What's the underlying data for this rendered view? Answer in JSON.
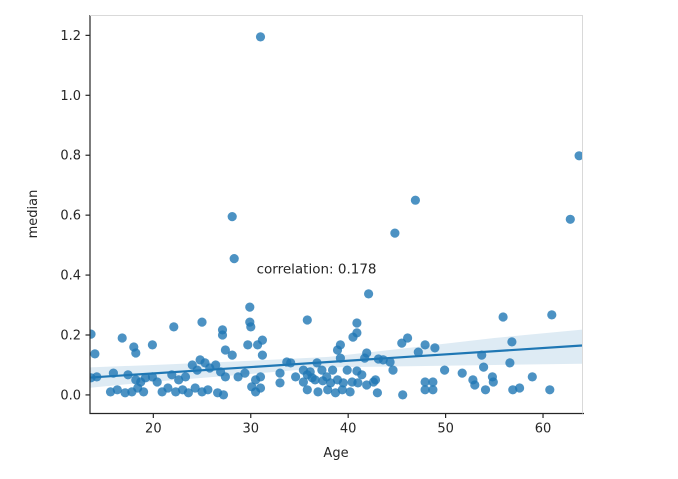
{
  "chart_data": {
    "type": "scatter",
    "title": "",
    "xlabel": "Age",
    "ylabel": "median",
    "xlim": [
      13.5,
      64.0
    ],
    "ylim": [
      -0.062,
      1.268
    ],
    "x_ticks": [
      20,
      30,
      40,
      50,
      60
    ],
    "x_tick_labels": [
      "20",
      "30",
      "40",
      "50",
      "60"
    ],
    "y_ticks": [
      0.0,
      0.2,
      0.4,
      0.6,
      0.8,
      1.0,
      1.2
    ],
    "y_tick_labels": [
      "0.0",
      "0.2",
      "0.4",
      "0.6",
      "0.8",
      "1.0",
      "1.2"
    ],
    "grid": false,
    "legend": null,
    "annotation": {
      "text": "correlation: 0.178",
      "x": 30.6,
      "y": 0.405
    },
    "colors": {
      "marker": "#1f77b4",
      "marker_opacity": 0.8,
      "regression_line": "#1f77b4",
      "confidence_band": "#1f77b4",
      "band_opacity": 0.15,
      "axis_dark": "#262626",
      "axis_light": "#d9d9d9",
      "background": "#ffffff"
    },
    "marker_radius": 4.6,
    "regression_line_data": {
      "x": [
        13.5,
        64.0
      ],
      "y": [
        0.058,
        0.165
      ]
    },
    "confidence_band_data": {
      "x": [
        13.5,
        20,
        30,
        38,
        47,
        55,
        64
      ],
      "upper": [
        0.092,
        0.1,
        0.114,
        0.127,
        0.16,
        0.19,
        0.218
      ],
      "lower": [
        0.024,
        0.044,
        0.07,
        0.092,
        0.096,
        0.1,
        0.104
      ]
    },
    "points": [
      [
        13.6,
        0.203
      ],
      [
        13.6,
        0.057
      ],
      [
        14.0,
        0.137
      ],
      [
        14.2,
        0.06
      ],
      [
        15.6,
        0.01
      ],
      [
        15.9,
        0.073
      ],
      [
        16.3,
        0.017
      ],
      [
        16.8,
        0.19
      ],
      [
        17.1,
        0.007
      ],
      [
        17.4,
        0.067
      ],
      [
        17.8,
        0.01
      ],
      [
        18.0,
        0.16
      ],
      [
        18.2,
        0.14
      ],
      [
        18.2,
        0.05
      ],
      [
        18.4,
        0.023
      ],
      [
        18.7,
        0.043
      ],
      [
        19.0,
        0.01
      ],
      [
        19.2,
        0.057
      ],
      [
        19.9,
        0.167
      ],
      [
        19.9,
        0.06
      ],
      [
        20.4,
        0.043
      ],
      [
        20.9,
        0.01
      ],
      [
        21.5,
        0.023
      ],
      [
        21.9,
        0.067
      ],
      [
        22.1,
        0.227
      ],
      [
        22.3,
        0.01
      ],
      [
        22.6,
        0.05
      ],
      [
        23.0,
        0.017
      ],
      [
        23.3,
        0.06
      ],
      [
        23.6,
        0.007
      ],
      [
        24.0,
        0.1
      ],
      [
        24.3,
        0.023
      ],
      [
        24.5,
        0.083
      ],
      [
        24.8,
        0.117
      ],
      [
        25.0,
        0.243
      ],
      [
        25.0,
        0.01
      ],
      [
        25.3,
        0.107
      ],
      [
        25.6,
        0.017
      ],
      [
        25.8,
        0.09
      ],
      [
        26.4,
        0.1
      ],
      [
        26.6,
        0.007
      ],
      [
        26.9,
        0.077
      ],
      [
        27.1,
        0.217
      ],
      [
        27.1,
        0.2
      ],
      [
        27.2,
        0.0
      ],
      [
        27.4,
        0.15
      ],
      [
        27.4,
        0.06
      ],
      [
        28.1,
        0.595
      ],
      [
        28.3,
        0.455
      ],
      [
        28.1,
        0.133
      ],
      [
        28.7,
        0.06
      ],
      [
        29.4,
        0.073
      ],
      [
        29.7,
        0.167
      ],
      [
        29.9,
        0.293
      ],
      [
        29.9,
        0.243
      ],
      [
        30.0,
        0.227
      ],
      [
        30.1,
        0.027
      ],
      [
        30.5,
        0.05
      ],
      [
        30.5,
        0.01
      ],
      [
        30.7,
        0.167
      ],
      [
        31.0,
        1.195
      ],
      [
        31.0,
        0.06
      ],
      [
        31.0,
        0.023
      ],
      [
        31.2,
        0.183
      ],
      [
        31.2,
        0.133
      ],
      [
        33.0,
        0.073
      ],
      [
        33.0,
        0.04
      ],
      [
        33.7,
        0.11
      ],
      [
        34.1,
        0.107
      ],
      [
        34.6,
        0.06
      ],
      [
        35.4,
        0.083
      ],
      [
        35.4,
        0.043
      ],
      [
        35.8,
        0.25
      ],
      [
        35.8,
        0.067
      ],
      [
        35.8,
        0.017
      ],
      [
        36.1,
        0.077
      ],
      [
        36.3,
        0.057
      ],
      [
        36.6,
        0.05
      ],
      [
        36.8,
        0.107
      ],
      [
        36.9,
        0.01
      ],
      [
        37.3,
        0.083
      ],
      [
        37.4,
        0.047
      ],
      [
        37.8,
        0.06
      ],
      [
        37.9,
        0.017
      ],
      [
        38.2,
        0.04
      ],
      [
        38.4,
        0.083
      ],
      [
        38.7,
        0.007
      ],
      [
        38.9,
        0.15
      ],
      [
        38.9,
        0.05
      ],
      [
        39.2,
        0.167
      ],
      [
        39.2,
        0.123
      ],
      [
        39.4,
        0.017
      ],
      [
        39.5,
        0.04
      ],
      [
        39.9,
        0.083
      ],
      [
        40.2,
        0.01
      ],
      [
        40.4,
        0.043
      ],
      [
        40.5,
        0.193
      ],
      [
        40.9,
        0.24
      ],
      [
        40.9,
        0.207
      ],
      [
        40.9,
        0.08
      ],
      [
        41.0,
        0.04
      ],
      [
        41.4,
        0.067
      ],
      [
        41.7,
        0.123
      ],
      [
        41.9,
        0.14
      ],
      [
        41.9,
        0.033
      ],
      [
        42.1,
        0.337
      ],
      [
        42.6,
        0.043
      ],
      [
        42.8,
        0.05
      ],
      [
        43.0,
        0.007
      ],
      [
        43.1,
        0.12
      ],
      [
        43.6,
        0.117
      ],
      [
        44.3,
        0.11
      ],
      [
        44.6,
        0.083
      ],
      [
        44.8,
        0.54
      ],
      [
        45.5,
        0.173
      ],
      [
        45.6,
        0.0
      ],
      [
        46.1,
        0.19
      ],
      [
        46.9,
        0.65
      ],
      [
        47.2,
        0.143
      ],
      [
        47.9,
        0.167
      ],
      [
        47.9,
        0.043
      ],
      [
        47.9,
        0.017
      ],
      [
        48.7,
        0.043
      ],
      [
        48.7,
        0.017
      ],
      [
        48.9,
        0.157
      ],
      [
        49.9,
        0.083
      ],
      [
        51.7,
        0.073
      ],
      [
        52.8,
        0.05
      ],
      [
        53.0,
        0.033
      ],
      [
        53.7,
        0.133
      ],
      [
        53.9,
        0.093
      ],
      [
        54.1,
        0.017
      ],
      [
        54.8,
        0.06
      ],
      [
        54.9,
        0.043
      ],
      [
        55.9,
        0.26
      ],
      [
        56.6,
        0.107
      ],
      [
        56.8,
        0.177
      ],
      [
        56.9,
        0.017
      ],
      [
        57.6,
        0.023
      ],
      [
        58.9,
        0.06
      ],
      [
        60.7,
        0.017
      ],
      [
        60.9,
        0.267
      ],
      [
        62.8,
        0.586
      ],
      [
        63.7,
        0.798
      ]
    ]
  }
}
